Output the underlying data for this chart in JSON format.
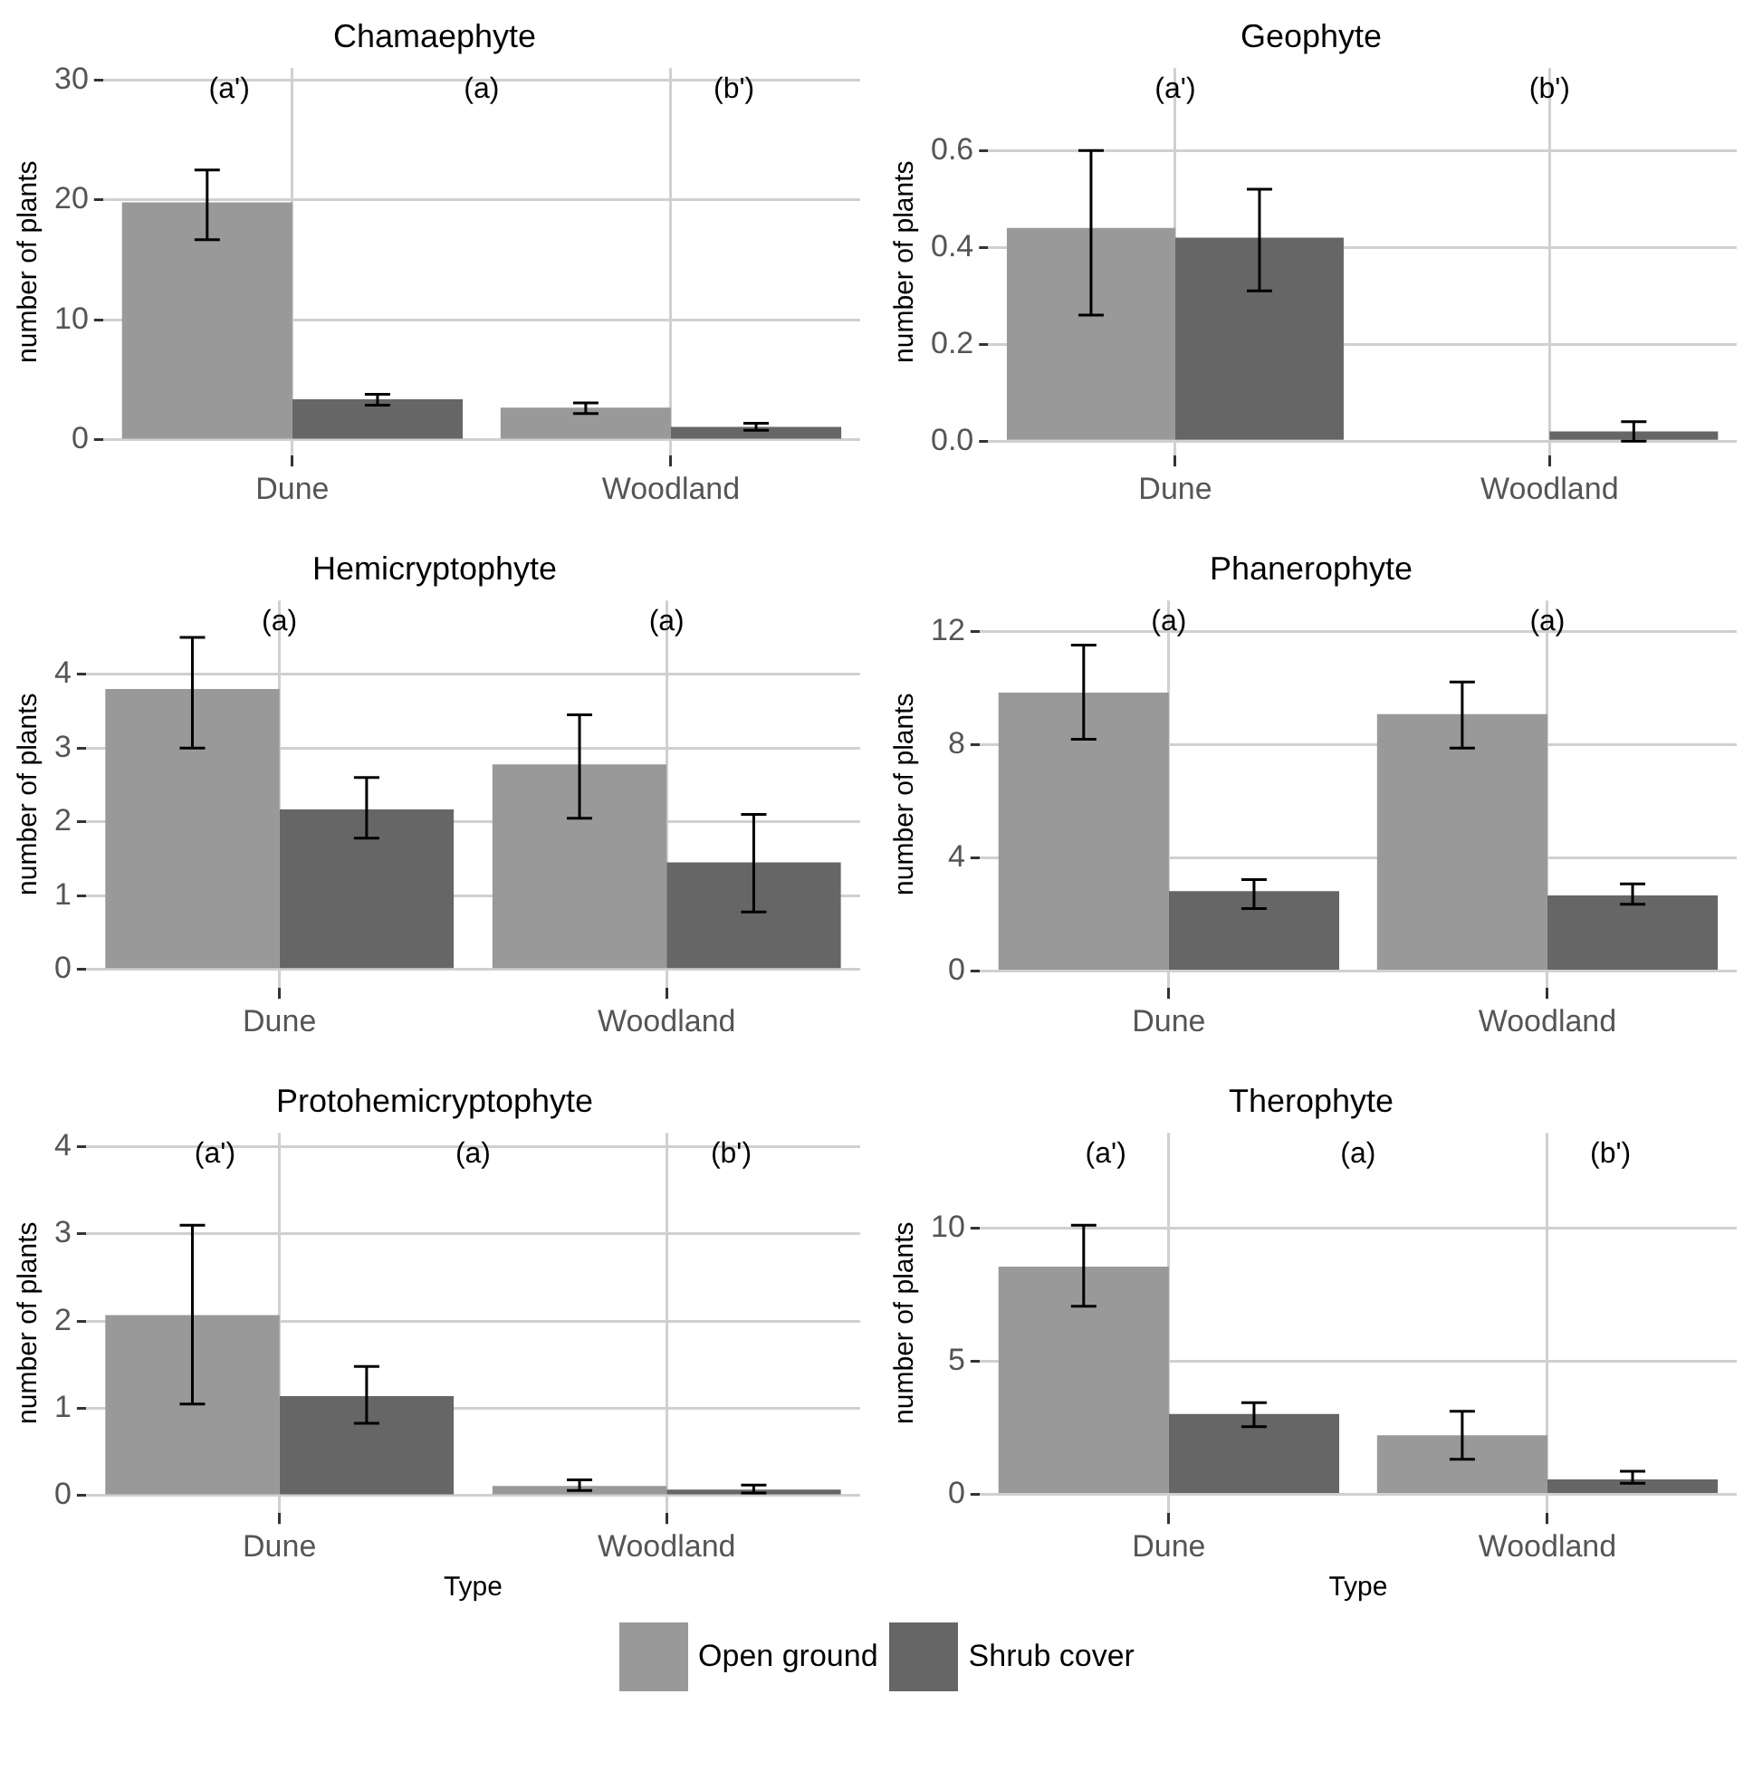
{
  "chart_data": [
    {
      "type": "bar",
      "title": "Chamaephyte",
      "ylabel": "number of plants",
      "categories": [
        "Dune",
        "Woodland"
      ],
      "ylim": [
        -1.3,
        31
      ],
      "yticks": [
        0,
        10,
        20,
        30
      ],
      "grid": true,
      "legend": "bottom",
      "series": [
        {
          "name": "Open ground",
          "color": "#999999",
          "values": [
            19.8,
            2.7
          ],
          "errors": [
            [
              16.7,
              22.5
            ],
            [
              2.2,
              3.1
            ]
          ]
        },
        {
          "name": "Shrub cover",
          "color": "#666666",
          "values": [
            3.4,
            1.1
          ],
          "errors": [
            [
              2.9,
              3.8
            ],
            [
              0.8,
              1.4
            ]
          ]
        }
      ],
      "annotations": [
        "(a')",
        "(a)",
        "(b')"
      ]
    },
    {
      "type": "bar",
      "title": "Geophyte",
      "ylabel": "number of plants",
      "categories": [
        "Dune",
        "Woodland"
      ],
      "ylim": [
        -0.03,
        0.77
      ],
      "yticks": [
        {
          "value": 0,
          "label": "0.0"
        },
        0.2,
        0.4,
        0.6
      ],
      "grid": true,
      "series": [
        {
          "color": "#999999",
          "values": [
            0.44,
            0
          ],
          "errors": [
            [
              0.26,
              0.6
            ],
            null
          ]
        },
        {
          "color": "#666666",
          "values": [
            0.42,
            0.02
          ],
          "errors": [
            [
              0.31,
              0.52
            ],
            [
              0,
              0.04
            ]
          ]
        }
      ],
      "annotations": [
        "(a')",
        "(b')"
      ]
    },
    {
      "type": "bar",
      "title": "Hemicryptophyte",
      "ylabel": "number of plants",
      "categories": [
        "Dune",
        "Woodland"
      ],
      "ylim": [
        -0.25,
        5
      ],
      "yticks": [
        0,
        1,
        2,
        3,
        4
      ],
      "grid": true,
      "series": [
        {
          "color": "#999999",
          "values": [
            3.8,
            2.78
          ],
          "errors": [
            [
              3.0,
              4.5
            ],
            [
              2.05,
              3.45
            ]
          ]
        },
        {
          "color": "#666666",
          "values": [
            2.17,
            1.45
          ],
          "errors": [
            [
              1.78,
              2.6
            ],
            [
              0.78,
              2.1
            ]
          ]
        }
      ],
      "annotations": [
        "(a)",
        "(a)"
      ]
    },
    {
      "type": "bar",
      "title": "Phanerophyte",
      "ylabel": "number of plants",
      "categories": [
        "Dune",
        "Woodland"
      ],
      "ylim": [
        -0.6,
        13.1
      ],
      "yticks": [
        0,
        4,
        8,
        12
      ],
      "grid": true,
      "series": [
        {
          "color": "#999999",
          "values": [
            9.84,
            9.08
          ],
          "errors": [
            [
              8.19,
              11.52
            ],
            [
              7.88,
              10.22
            ]
          ]
        },
        {
          "color": "#666666",
          "values": [
            2.82,
            2.67
          ],
          "errors": [
            [
              2.21,
              3.23
            ],
            [
              2.36,
              3.08
            ]
          ]
        }
      ],
      "annotations": [
        "(a)",
        "(a)"
      ]
    },
    {
      "type": "bar",
      "title": "Protohemicryptophyte",
      "ylabel": "number of plants",
      "xlabel": "Type",
      "categories": [
        "Dune",
        "Woodland"
      ],
      "ylim": [
        -0.2,
        4.16
      ],
      "yticks": [
        0,
        1,
        2,
        3,
        4
      ],
      "grid": true,
      "series": [
        {
          "color": "#999999",
          "values": [
            2.07,
            0.11
          ],
          "errors": [
            [
              1.05,
              3.1
            ],
            [
              0.06,
              0.18
            ]
          ]
        },
        {
          "color": "#666666",
          "values": [
            1.14,
            0.07
          ],
          "errors": [
            [
              0.83,
              1.48
            ],
            [
              0.03,
              0.12
            ]
          ]
        }
      ],
      "annotations": [
        "(a')",
        "(a)",
        "(b')"
      ]
    },
    {
      "type": "bar",
      "title": "Therophyte",
      "ylabel": "number of plants",
      "xlabel": "Type",
      "categories": [
        "Dune",
        "Woodland"
      ],
      "ylim": [
        -0.7,
        13.57
      ],
      "yticks": [
        0,
        5,
        10
      ],
      "grid": true,
      "series": [
        {
          "color": "#999999",
          "values": [
            8.55,
            2.22
          ],
          "errors": [
            [
              7.06,
              10.1
            ],
            [
              1.32,
              3.12
            ]
          ]
        },
        {
          "color": "#666666",
          "values": [
            3.02,
            0.56
          ],
          "errors": [
            [
              2.54,
              3.44
            ],
            [
              0.42,
              0.87
            ]
          ]
        }
      ],
      "annotations": [
        "(a')",
        "(a)",
        "(b')"
      ]
    }
  ]
}
